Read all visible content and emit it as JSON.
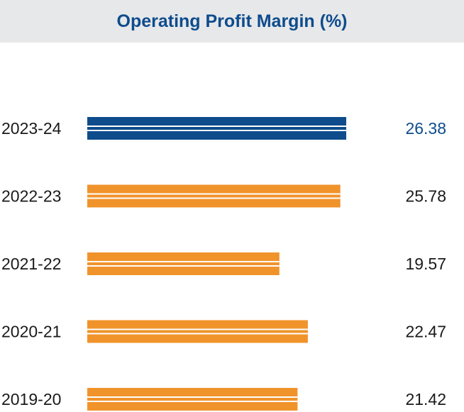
{
  "chart_data": {
    "type": "bar",
    "orientation": "horizontal",
    "title": "Operating Profit Margin (%)",
    "categories": [
      "2023-24",
      "2022-23",
      "2021-22",
      "2020-21",
      "2019-20"
    ],
    "values": [
      26.38,
      25.78,
      19.57,
      22.47,
      21.42
    ],
    "xlim": [
      0,
      26.38
    ],
    "grid": false,
    "colors": {
      "highlight": "#0e4c8c",
      "default": "#f0932b",
      "header_bg": "#e7e8ea",
      "label_text": "#1a1a1a"
    },
    "highlight_index": 0
  }
}
